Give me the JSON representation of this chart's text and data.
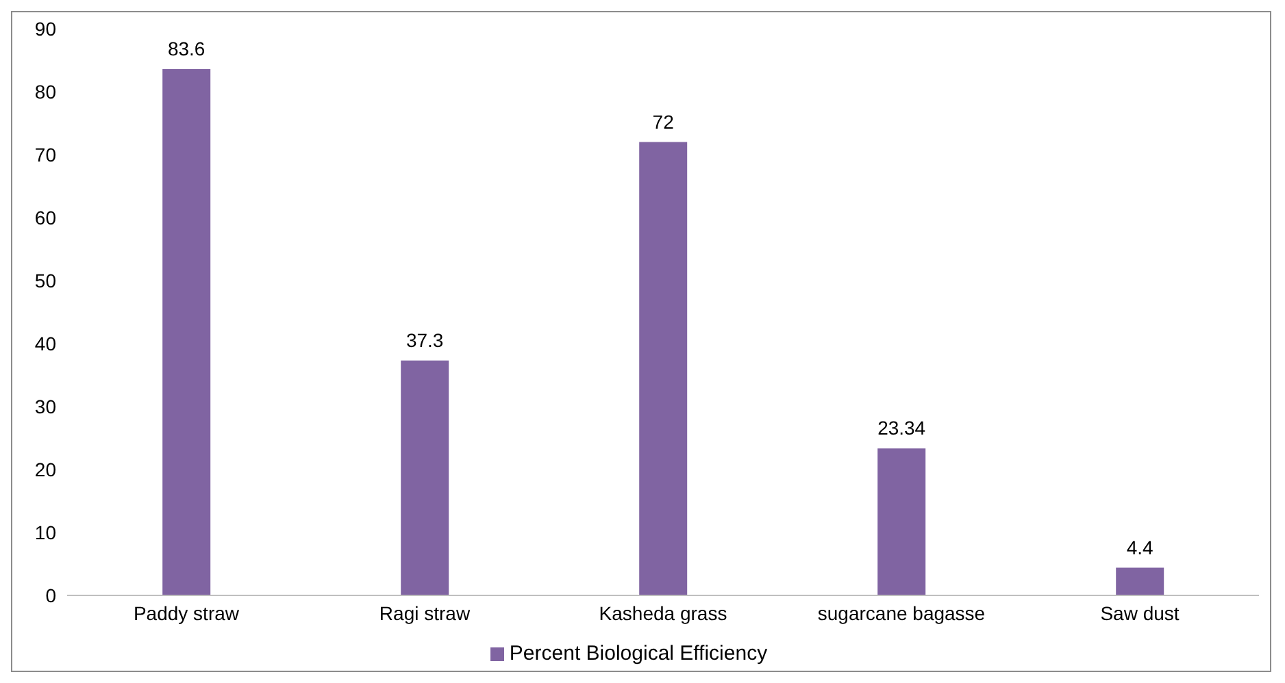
{
  "chart_data": {
    "type": "bar",
    "categories": [
      "Paddy straw",
      "Ragi straw",
      "Kasheda grass",
      "sugarcane bagasse",
      "Saw dust"
    ],
    "series": [
      {
        "name": "Percent Biological Efficiency",
        "color": "#8064a2",
        "values": [
          83.6,
          37.3,
          72,
          23.34,
          4.4
        ]
      }
    ],
    "ylim": [
      0,
      90
    ],
    "yticks": [
      0,
      10,
      20,
      30,
      40,
      50,
      60,
      70,
      80,
      90
    ],
    "grid": false,
    "legend": "bottom",
    "data_labels": true
  }
}
